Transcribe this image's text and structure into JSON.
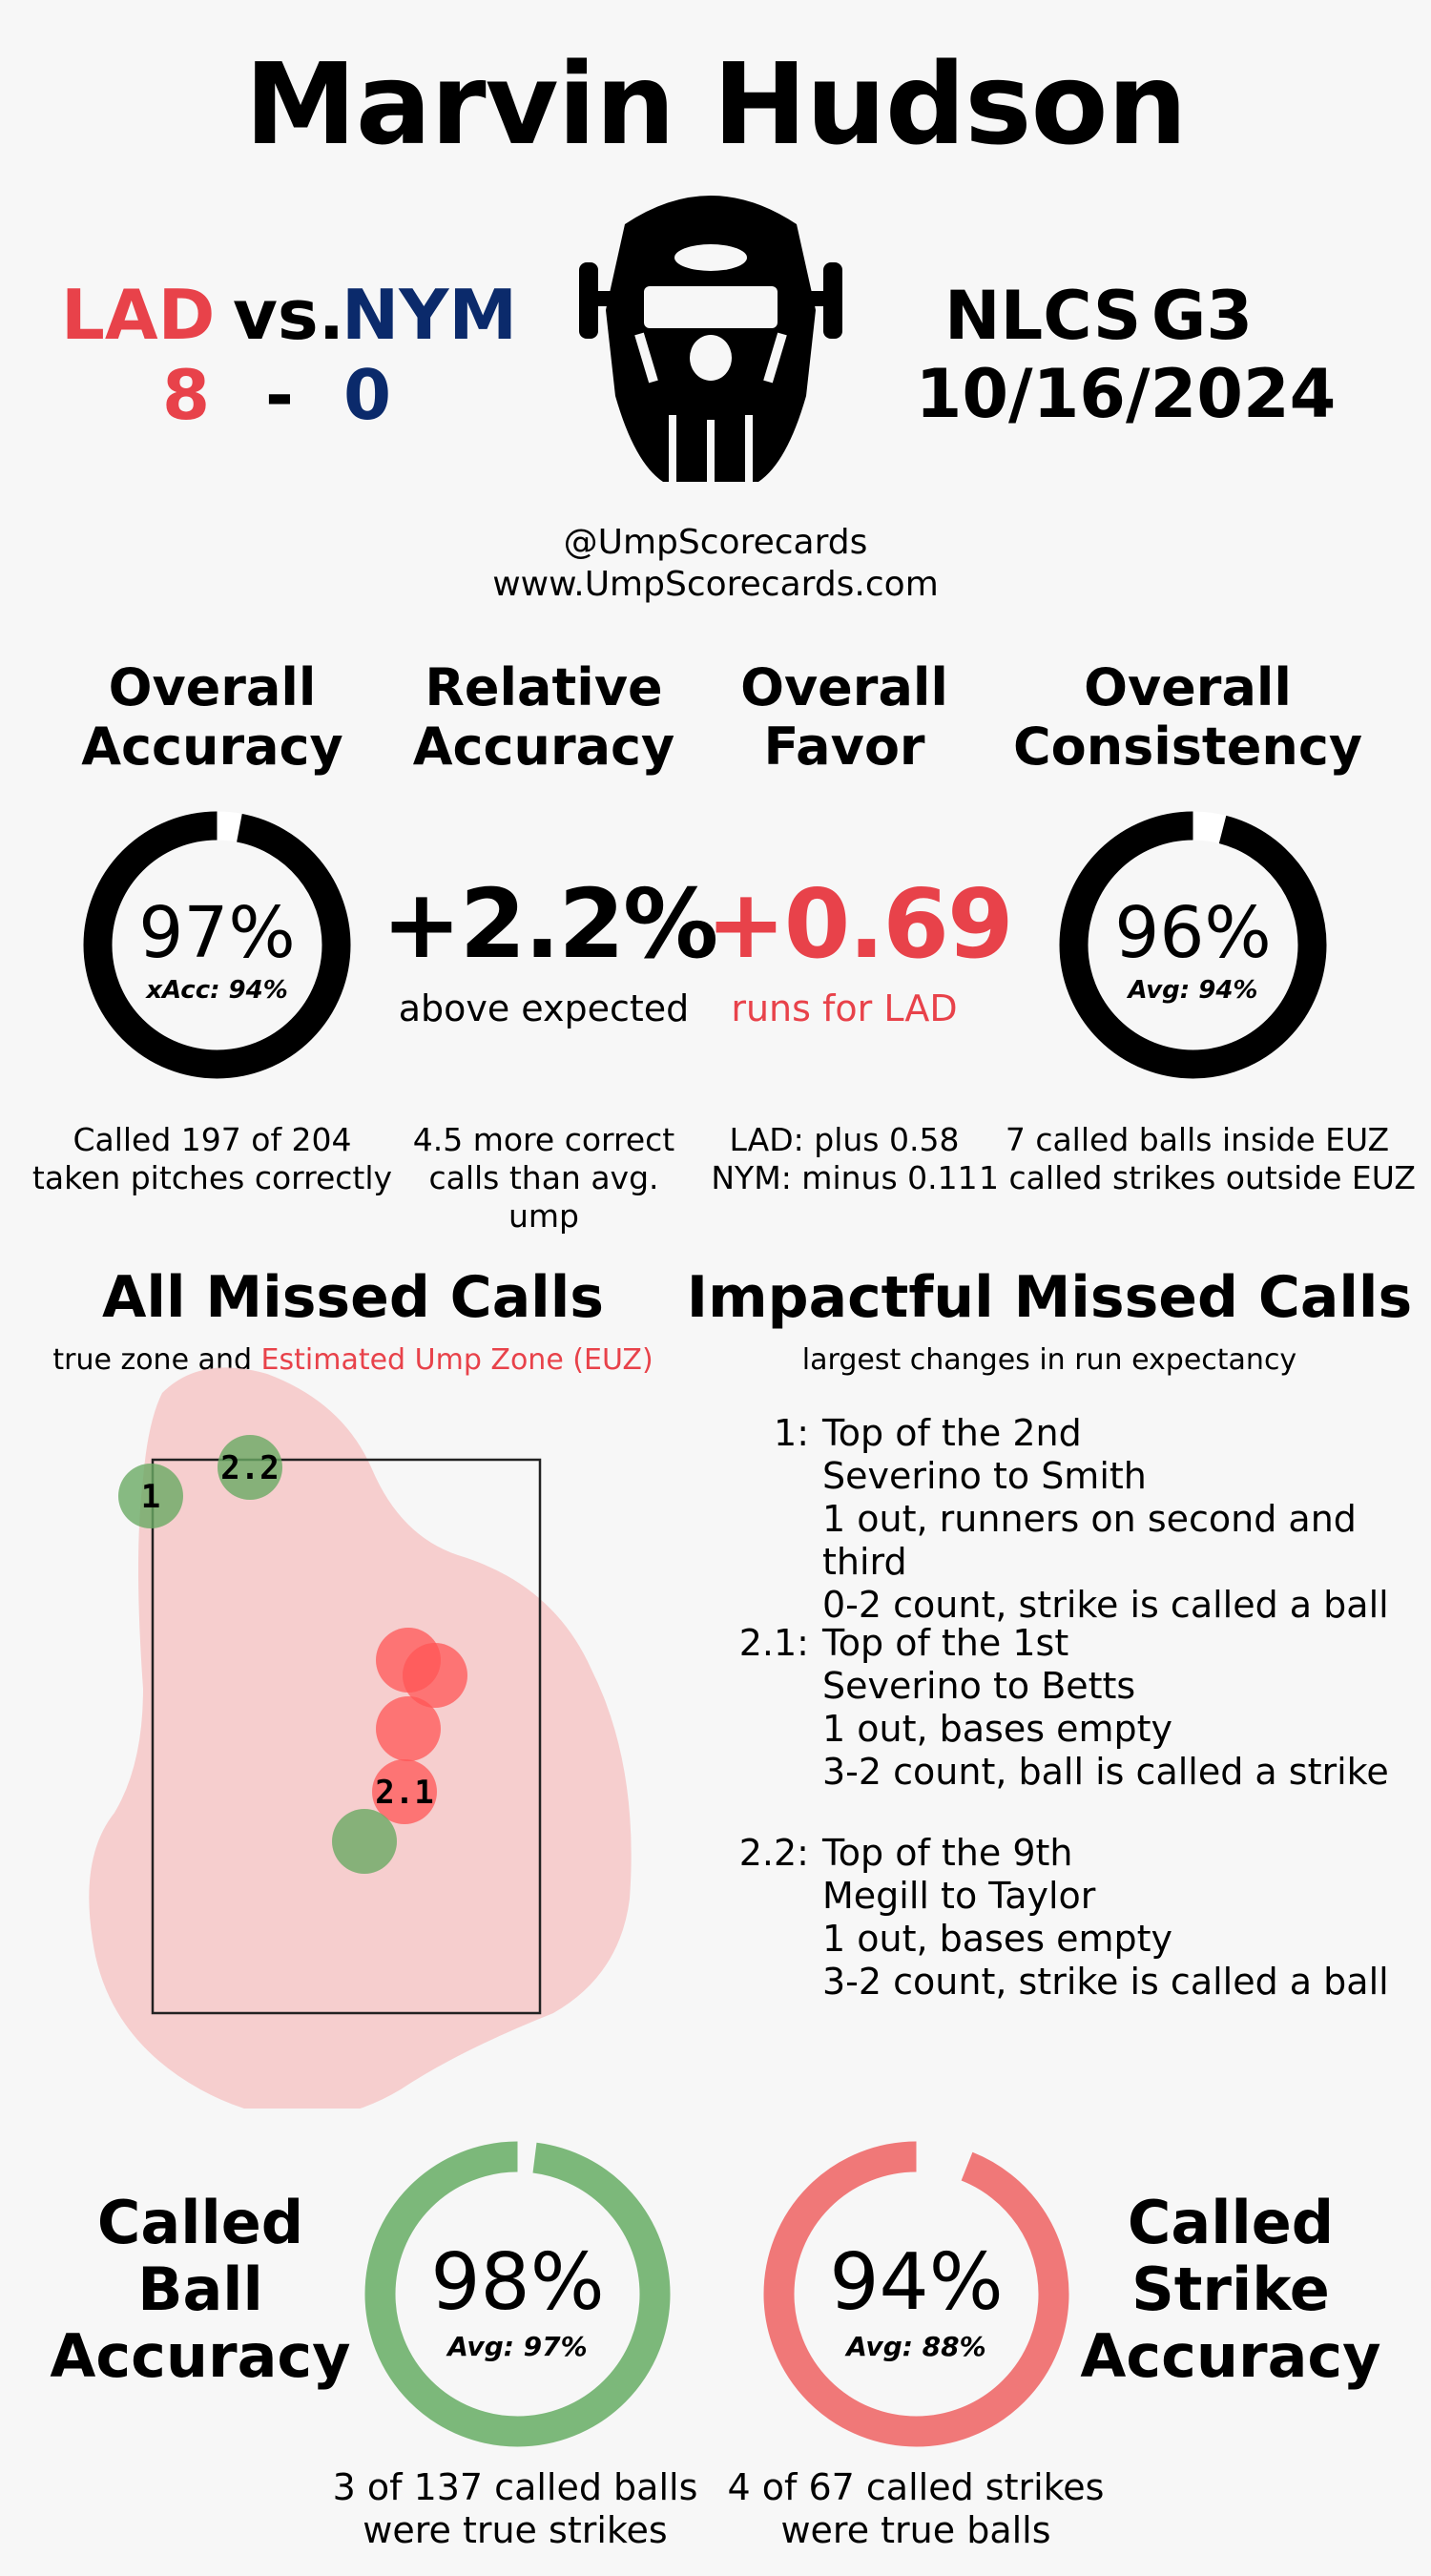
{
  "header": {
    "umpire_name": "Marvin Hudson",
    "away_team": "LAD",
    "vs": "vs.",
    "home_team": "NYM",
    "away_score": "8",
    "dash": "-",
    "home_score": "0",
    "series": "NLCS",
    "game": "G3",
    "date": "10/16/2024",
    "handle": "@UmpScorecards",
    "website": "www.UmpScorecards.com"
  },
  "colors": {
    "lad_red": "#e8424a",
    "nym_navy": "#0b2a6b",
    "ball_green": "#7cb87a",
    "strike_red": "#f07878",
    "euz_fill": "#f5c9c9"
  },
  "stats": {
    "accuracy": {
      "heading_1": "Overall",
      "heading_2": "Accuracy",
      "value": "97%",
      "value_pct": 97,
      "sub": "xAcc: 94%",
      "foot_1": "Called 197 of 204",
      "foot_2": "taken pitches correctly"
    },
    "relative": {
      "heading_1": "Relative",
      "heading_2": "Accuracy",
      "value": "+2.2%",
      "sub": "above expected",
      "foot_1": "4.5 more correct",
      "foot_2": "calls than avg. ump"
    },
    "favor": {
      "heading_1": "Overall",
      "heading_2": "Favor",
      "value": "+0.69",
      "sub": "runs for LAD",
      "foot_1": "LAD: plus 0.58",
      "foot_2": "NYM: minus 0.11"
    },
    "consistency": {
      "heading_1": "Overall",
      "heading_2": "Consistency",
      "value": "96%",
      "value_pct": 96,
      "sub": "Avg: 94%",
      "foot_1": "7 called balls inside EUZ",
      "foot_2": "1 called strikes outside EUZ"
    }
  },
  "missed_calls": {
    "title": "All Missed Calls",
    "sub_prefix": "true zone and",
    "sub_euz": "Estimated Ump Zone (EUZ)",
    "points": [
      {
        "label": "1",
        "type": "ball_called_strike_zone"
      },
      {
        "label": "2.2",
        "type": "ball_called_strike_zone"
      },
      {
        "label": "",
        "type": "strike_missed"
      },
      {
        "label": "",
        "type": "strike_missed"
      },
      {
        "label": "",
        "type": "strike_missed"
      },
      {
        "label": "2.1",
        "type": "strike_missed"
      },
      {
        "label": "",
        "type": "ball_called_strike_zone"
      }
    ]
  },
  "impactful": {
    "title": "Impactful Missed Calls",
    "sub": "largest changes in run expectancy",
    "calls": [
      {
        "num": "1:",
        "inning": "Top of the 2nd",
        "matchup": "Severino to Smith",
        "situation": "1 out, runners on second and third",
        "count": "0-2 count, strike is called a ball"
      },
      {
        "num": "2.1:",
        "inning": "Top of the 1st",
        "matchup": "Severino to Betts",
        "situation": "1 out, bases empty",
        "count": "3-2 count, ball is called a strike"
      },
      {
        "num": "2.2:",
        "inning": "Top of the 9th",
        "matchup": "Megill to Taylor",
        "situation": "1 out, bases empty",
        "count": "3-2 count, strike is called a ball"
      }
    ]
  },
  "called_ball": {
    "label_1": "Called",
    "label_2": "Ball",
    "label_3": "Accuracy",
    "value": "98%",
    "value_pct": 98,
    "sub": "Avg: 97%",
    "foot_1": "3 of 137 called balls",
    "foot_2": "were true strikes"
  },
  "called_strike": {
    "label_1": "Called",
    "label_2": "Strike",
    "label_3": "Accuracy",
    "value": "94%",
    "value_pct": 94,
    "sub": "Avg: 88%",
    "foot_1": "4 of 67 called strikes",
    "foot_2": "were true balls"
  }
}
